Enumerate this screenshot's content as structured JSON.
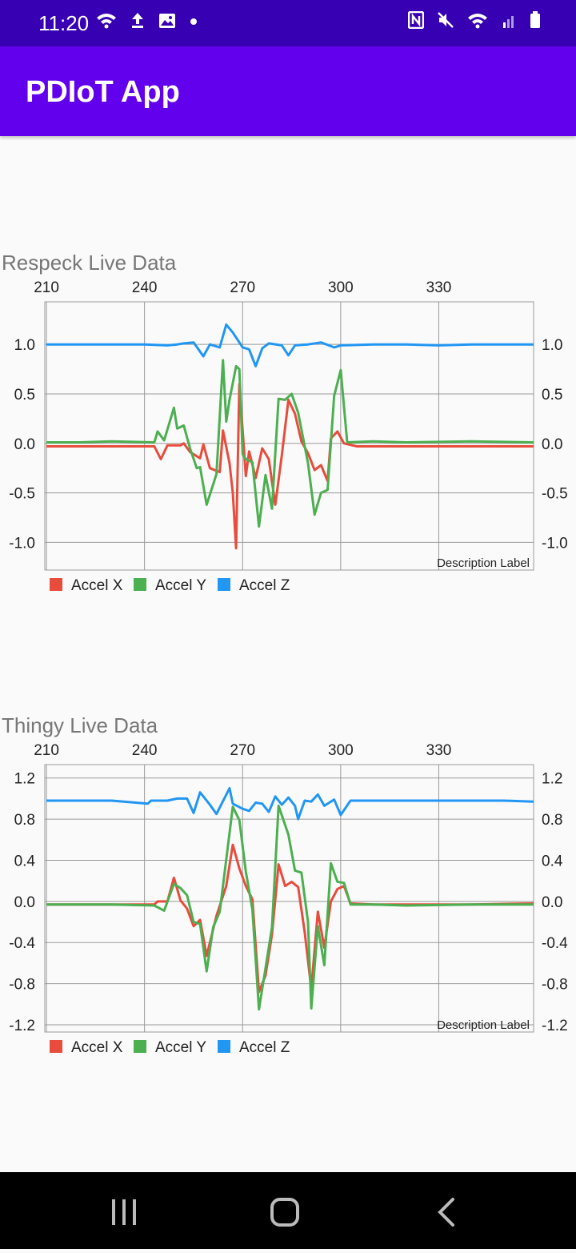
{
  "status_bar": {
    "time": "11:20",
    "left_icons": [
      "wifi-icon",
      "upload-icon",
      "image-icon",
      "dot-icon"
    ],
    "right_icons": [
      "nfc-icon",
      "mute-icon",
      "wifi-roaming-icon",
      "signal-icon",
      "battery-icon"
    ]
  },
  "app_bar": {
    "title": "PDIoT App",
    "color": "#6200ee"
  },
  "charts": [
    {
      "title": "Respeck Live Data"
    },
    {
      "title": "Thingy Live Data"
    }
  ],
  "chart_data": [
    {
      "type": "line",
      "title": "Respeck Live Data",
      "description": "Description Label",
      "x_ticks": [
        210,
        240,
        270,
        300,
        330
      ],
      "xlim": [
        209.5,
        359
      ],
      "y_ticks": [
        "1.0",
        "0.5",
        "0.0",
        "-0.5",
        "-1.0"
      ],
      "ylim": [
        -1.28,
        1.43
      ],
      "grid": true,
      "legend_position": "bottom-left",
      "series": [
        {
          "name": "Accel X",
          "color": "#e74c3c",
          "points": [
            [
              210,
              -0.03
            ],
            [
              220,
              -0.03
            ],
            [
              230,
              -0.03
            ],
            [
              243,
              -0.03
            ],
            [
              245,
              -0.16
            ],
            [
              247,
              -0.02
            ],
            [
              251,
              -0.02
            ],
            [
              252,
              0.0
            ],
            [
              254,
              -0.09
            ],
            [
              257,
              -0.15
            ],
            [
              258,
              -0.01
            ],
            [
              260,
              -0.25
            ],
            [
              263,
              -0.29
            ],
            [
              264,
              0.13
            ],
            [
              266,
              -0.2
            ],
            [
              267,
              -0.5
            ],
            [
              268,
              -1.06
            ],
            [
              269,
              0.6
            ],
            [
              271,
              -0.33
            ],
            [
              272,
              -0.08
            ],
            [
              274,
              -0.35
            ],
            [
              276,
              -0.05
            ],
            [
              278,
              -0.16
            ],
            [
              280,
              -0.62
            ],
            [
              282,
              -0.12
            ],
            [
              284,
              0.44
            ],
            [
              286,
              0.3
            ],
            [
              288,
              0.02
            ],
            [
              290,
              -0.1
            ],
            [
              292,
              -0.27
            ],
            [
              294,
              -0.22
            ],
            [
              296,
              -0.38
            ],
            [
              297,
              0.05
            ],
            [
              299,
              0.12
            ],
            [
              301,
              0.0
            ],
            [
              305,
              -0.03
            ],
            [
              320,
              -0.03
            ],
            [
              340,
              -0.03
            ],
            [
              359,
              -0.03
            ]
          ]
        },
        {
          "name": "Accel Y",
          "color": "#4caf50",
          "points": [
            [
              210,
              0.01
            ],
            [
              220,
              0.01
            ],
            [
              230,
              0.02
            ],
            [
              243,
              0.01
            ],
            [
              244,
              0.12
            ],
            [
              246,
              0.03
            ],
            [
              249,
              0.36
            ],
            [
              250,
              0.15
            ],
            [
              252,
              0.18
            ],
            [
              254,
              -0.06
            ],
            [
              256,
              -0.25
            ],
            [
              257,
              -0.24
            ],
            [
              259,
              -0.62
            ],
            [
              262,
              -0.31
            ],
            [
              264,
              0.84
            ],
            [
              265,
              0.22
            ],
            [
              266,
              0.44
            ],
            [
              268,
              0.78
            ],
            [
              269,
              0.75
            ],
            [
              270,
              -0.11
            ],
            [
              271,
              -0.16
            ],
            [
              273,
              -0.19
            ],
            [
              275,
              -0.84
            ],
            [
              277,
              -0.32
            ],
            [
              279,
              -0.66
            ],
            [
              281,
              0.45
            ],
            [
              283,
              0.44
            ],
            [
              285,
              0.5
            ],
            [
              287,
              0.31
            ],
            [
              289,
              -0.03
            ],
            [
              290,
              -0.2
            ],
            [
              292,
              -0.72
            ],
            [
              294,
              -0.5
            ],
            [
              296,
              -0.47
            ],
            [
              298,
              0.48
            ],
            [
              300,
              0.74
            ],
            [
              302,
              0.01
            ],
            [
              310,
              0.02
            ],
            [
              320,
              0.01
            ],
            [
              340,
              0.02
            ],
            [
              359,
              0.01
            ]
          ]
        },
        {
          "name": "Accel Z",
          "color": "#2196f3",
          "points": [
            [
              210,
              1.0
            ],
            [
              220,
              1.0
            ],
            [
              230,
              1.0
            ],
            [
              240,
              1.0
            ],
            [
              247,
              0.99
            ],
            [
              250,
              1.0
            ],
            [
              252,
              1.01
            ],
            [
              255,
              1.02
            ],
            [
              258,
              0.88
            ],
            [
              260,
              1.0
            ],
            [
              263,
              0.97
            ],
            [
              265,
              1.2
            ],
            [
              267,
              1.12
            ],
            [
              270,
              0.97
            ],
            [
              272,
              0.95
            ],
            [
              274,
              0.78
            ],
            [
              276,
              0.96
            ],
            [
              278,
              1.01
            ],
            [
              282,
              0.99
            ],
            [
              284,
              0.89
            ],
            [
              286,
              0.99
            ],
            [
              290,
              1.0
            ],
            [
              294,
              1.02
            ],
            [
              298,
              0.97
            ],
            [
              300,
              0.99
            ],
            [
              310,
              1.0
            ],
            [
              320,
              1.0
            ],
            [
              330,
              0.99
            ],
            [
              340,
              1.0
            ],
            [
              359,
              1.0
            ]
          ]
        }
      ]
    },
    {
      "type": "line",
      "title": "Thingy Live Data",
      "description": "Description Label",
      "x_ticks": [
        210,
        240,
        270,
        300,
        330
      ],
      "xlim": [
        209.5,
        359
      ],
      "y_ticks": [
        "1.2",
        "0.8",
        "0.4",
        "0.0",
        "-0.4",
        "-0.8",
        "-1.2"
      ],
      "ylim": [
        -1.27,
        1.33
      ],
      "grid": true,
      "legend_position": "bottom-left",
      "series": [
        {
          "name": "Accel X",
          "color": "#e74c3c",
          "points": [
            [
              210,
              -0.03
            ],
            [
              220,
              -0.03
            ],
            [
              230,
              -0.03
            ],
            [
              243,
              -0.03
            ],
            [
              244,
              0.0
            ],
            [
              247,
              0.0
            ],
            [
              249,
              0.23
            ],
            [
              251,
              0.01
            ],
            [
              253,
              -0.07
            ],
            [
              255,
              -0.24
            ],
            [
              257,
              -0.18
            ],
            [
              259,
              -0.53
            ],
            [
              262,
              -0.14
            ],
            [
              265,
              0.15
            ],
            [
              267,
              0.55
            ],
            [
              269,
              0.32
            ],
            [
              271,
              0.15
            ],
            [
              273,
              0.02
            ],
            [
              275,
              -0.88
            ],
            [
              277,
              -0.72
            ],
            [
              279,
              -0.32
            ],
            [
              281,
              0.36
            ],
            [
              283,
              0.15
            ],
            [
              285,
              0.19
            ],
            [
              287,
              0.14
            ],
            [
              289,
              -0.3
            ],
            [
              291,
              -0.85
            ],
            [
              293,
              -0.1
            ],
            [
              295,
              -0.45
            ],
            [
              297,
              0.0
            ],
            [
              299,
              0.12
            ],
            [
              301,
              0.15
            ],
            [
              303,
              -0.02
            ],
            [
              310,
              -0.03
            ],
            [
              320,
              -0.03
            ],
            [
              340,
              -0.03
            ],
            [
              359,
              -0.02
            ]
          ]
        },
        {
          "name": "Accel Y",
          "color": "#4caf50",
          "points": [
            [
              210,
              -0.03
            ],
            [
              220,
              -0.03
            ],
            [
              230,
              -0.03
            ],
            [
              243,
              -0.04
            ],
            [
              246,
              -0.09
            ],
            [
              249,
              0.17
            ],
            [
              251,
              0.13
            ],
            [
              253,
              0.06
            ],
            [
              255,
              -0.2
            ],
            [
              257,
              -0.22
            ],
            [
              259,
              -0.68
            ],
            [
              261,
              -0.25
            ],
            [
              263,
              -0.1
            ],
            [
              267,
              0.92
            ],
            [
              269,
              0.79
            ],
            [
              271,
              0.29
            ],
            [
              273,
              -0.08
            ],
            [
              275,
              -1.05
            ],
            [
              277,
              -0.65
            ],
            [
              279,
              -0.25
            ],
            [
              281,
              0.93
            ],
            [
              284,
              0.65
            ],
            [
              286,
              0.3
            ],
            [
              288,
              0.28
            ],
            [
              290,
              -0.2
            ],
            [
              291,
              -1.04
            ],
            [
              293,
              -0.24
            ],
            [
              295,
              -0.62
            ],
            [
              297,
              0.37
            ],
            [
              299,
              0.19
            ],
            [
              301,
              0.18
            ],
            [
              303,
              -0.03
            ],
            [
              310,
              -0.03
            ],
            [
              320,
              -0.04
            ],
            [
              340,
              -0.03
            ],
            [
              359,
              -0.03
            ]
          ]
        },
        {
          "name": "Accel Z",
          "color": "#2196f3",
          "points": [
            [
              210,
              0.98
            ],
            [
              220,
              0.98
            ],
            [
              230,
              0.98
            ],
            [
              241,
              0.95
            ],
            [
              242,
              0.98
            ],
            [
              247,
              0.98
            ],
            [
              250,
              1.0
            ],
            [
              253,
              1.0
            ],
            [
              255,
              0.86
            ],
            [
              257,
              1.06
            ],
            [
              260,
              0.94
            ],
            [
              262,
              0.85
            ],
            [
              266,
              1.1
            ],
            [
              267,
              0.95
            ],
            [
              270,
              0.9
            ],
            [
              272,
              0.88
            ],
            [
              274,
              0.96
            ],
            [
              276,
              0.95
            ],
            [
              278,
              0.87
            ],
            [
              280,
              1.02
            ],
            [
              282,
              0.94
            ],
            [
              284,
              1.01
            ],
            [
              286,
              0.93
            ],
            [
              287,
              0.8
            ],
            [
              289,
              0.98
            ],
            [
              291,
              0.97
            ],
            [
              293,
              1.04
            ],
            [
              295,
              0.93
            ],
            [
              298,
              0.99
            ],
            [
              300,
              0.84
            ],
            [
              303,
              0.98
            ],
            [
              310,
              0.98
            ],
            [
              320,
              0.98
            ],
            [
              330,
              0.98
            ],
            [
              340,
              0.98
            ],
            [
              350,
              0.98
            ],
            [
              359,
              0.97
            ]
          ]
        }
      ]
    }
  ]
}
